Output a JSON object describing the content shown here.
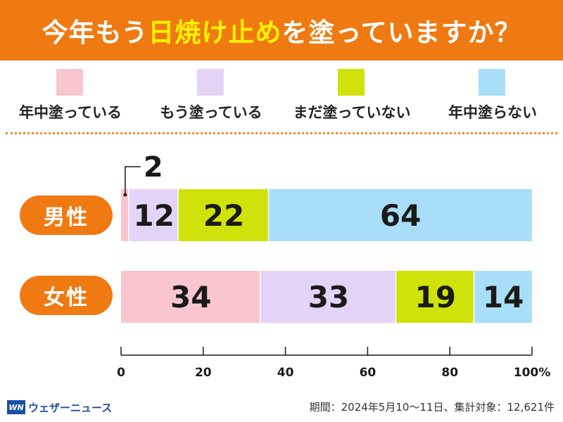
{
  "header": {
    "title_prefix": "今年もう",
    "title_highlight": "日焼け止め",
    "title_suffix": "を塗っていますか？",
    "background": "#ef7a12",
    "highlight_color": "#fff200"
  },
  "legend": [
    {
      "label": "年中塗っている",
      "color": "#f9c6cf"
    },
    {
      "label": "もう塗っている",
      "color": "#e3d3f6"
    },
    {
      "label": "まだ塗っていない",
      "color": "#cfe30a"
    },
    {
      "label": "年中塗らない",
      "color": "#a9def8"
    }
  ],
  "chart_data": {
    "type": "bar",
    "orientation": "horizontal",
    "stacked": true,
    "title": "今年もう日焼け止めを塗っていますか？",
    "categories": [
      "男性",
      "女性"
    ],
    "series": [
      {
        "name": "年中塗っている",
        "values": [
          2,
          34
        ],
        "color": "#f9c6cf"
      },
      {
        "name": "もう塗っている",
        "values": [
          12,
          33
        ],
        "color": "#e3d3f6"
      },
      {
        "name": "まだ塗っていない",
        "values": [
          22,
          19
        ],
        "color": "#cfe30a"
      },
      {
        "name": "年中塗らない",
        "values": [
          64,
          14
        ],
        "color": "#a9def8"
      }
    ],
    "xlim": [
      0,
      100
    ],
    "xticks": [
      0,
      20,
      40,
      60,
      80,
      100
    ],
    "xtick_labels": [
      "0",
      "20",
      "40",
      "60",
      "80",
      "100%"
    ],
    "grid": false,
    "legend_position": "top"
  },
  "footer": {
    "logo_mark": "WN",
    "logo_text": "ウェザーニュース",
    "note": "期間：2024年5月10～11日、集計対象：12,621件"
  }
}
